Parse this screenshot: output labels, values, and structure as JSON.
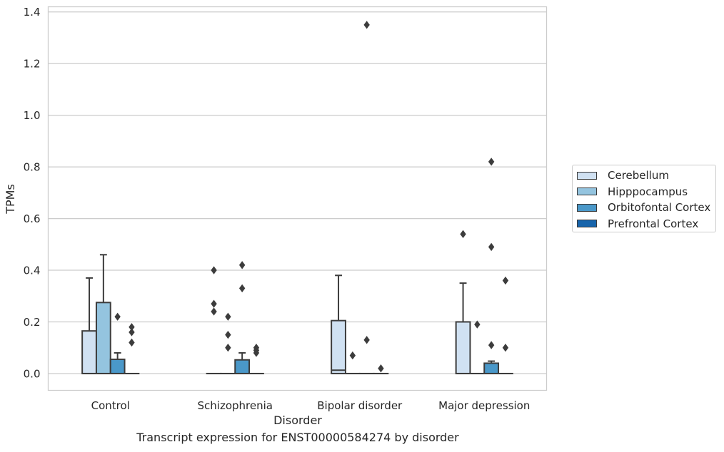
{
  "chart_data": {
    "type": "box",
    "xlabel": "Disorder",
    "ylabel": "TPMs",
    "caption": "Transcript expression for ENST00000584274 by disorder",
    "ylim": [
      -0.065,
      1.42
    ],
    "yticks": [
      "0.0",
      "0.2",
      "0.4",
      "0.6",
      "0.8",
      "1.0",
      "1.2",
      "1.4"
    ],
    "grid": true,
    "legend_position": "right",
    "categories": [
      "Control",
      "Schizophrenia",
      "Bipolar disorder",
      "Major depression"
    ],
    "series": [
      {
        "name": "Cerebellum",
        "color": "#d0e1f2",
        "boxes": [
          {
            "q1": 0.0,
            "median": 0.0,
            "q3": 0.165,
            "whisker_low": 0.0,
            "whisker_high": 0.37,
            "outliers": []
          },
          {
            "q1": 0.0,
            "median": 0.0,
            "q3": 0.0,
            "whisker_low": 0.0,
            "whisker_high": 0.0,
            "outliers": [
              0.4,
              0.27,
              0.24
            ]
          },
          {
            "q1": 0.0,
            "median": 0.013,
            "q3": 0.205,
            "whisker_low": 0.0,
            "whisker_high": 0.38,
            "outliers": []
          },
          {
            "q1": 0.0,
            "median": 0.0,
            "q3": 0.2,
            "whisker_low": 0.0,
            "whisker_high": 0.35,
            "outliers": [
              0.54
            ]
          }
        ]
      },
      {
        "name": "Hipppocampus",
        "color": "#94c4df",
        "boxes": [
          {
            "q1": 0.0,
            "median": 0.0,
            "q3": 0.275,
            "whisker_low": 0.0,
            "whisker_high": 0.46,
            "outliers": []
          },
          {
            "q1": 0.0,
            "median": 0.0,
            "q3": 0.0,
            "whisker_low": 0.0,
            "whisker_high": 0.0,
            "outliers": [
              0.22,
              0.15,
              0.1
            ]
          },
          {
            "q1": 0.0,
            "median": 0.0,
            "q3": 0.0,
            "whisker_low": 0.0,
            "whisker_high": 0.0,
            "outliers": [
              0.07
            ]
          },
          {
            "q1": 0.0,
            "median": 0.0,
            "q3": 0.0,
            "whisker_low": 0.0,
            "whisker_high": 0.0,
            "outliers": [
              0.19
            ]
          }
        ]
      },
      {
        "name": "Orbitofontal Cortex",
        "color": "#4a98c9",
        "boxes": [
          {
            "q1": 0.0,
            "median": 0.0,
            "q3": 0.055,
            "whisker_low": 0.0,
            "whisker_high": 0.08,
            "outliers": [
              0.22
            ]
          },
          {
            "q1": 0.0,
            "median": 0.0,
            "q3": 0.053,
            "whisker_low": 0.0,
            "whisker_high": 0.08,
            "outliers": [
              0.42,
              0.33
            ]
          },
          {
            "q1": 0.0,
            "median": 0.0,
            "q3": 0.0,
            "whisker_low": 0.0,
            "whisker_high": 0.0,
            "outliers": [
              1.35,
              0.13
            ]
          },
          {
            "q1": 0.0,
            "median": 0.0,
            "q3": 0.04,
            "whisker_low": 0.0,
            "whisker_high": 0.048,
            "outliers": [
              0.82,
              0.49,
              0.11
            ]
          }
        ]
      },
      {
        "name": "Prefrontal Cortex",
        "color": "#1764ab",
        "boxes": [
          {
            "q1": 0.0,
            "median": 0.0,
            "q3": 0.0,
            "whisker_low": 0.0,
            "whisker_high": 0.0,
            "outliers": [
              0.18,
              0.16,
              0.12
            ]
          },
          {
            "q1": 0.0,
            "median": 0.0,
            "q3": 0.0,
            "whisker_low": 0.0,
            "whisker_high": 0.0,
            "outliers": [
              0.1,
              0.09,
              0.08
            ]
          },
          {
            "q1": 0.0,
            "median": 0.0,
            "q3": 0.0,
            "whisker_low": 0.0,
            "whisker_high": 0.0,
            "outliers": [
              0.02
            ]
          },
          {
            "q1": 0.0,
            "median": 0.0,
            "q3": 0.0,
            "whisker_low": 0.0,
            "whisker_high": 0.0,
            "outliers": [
              0.36,
              0.1
            ]
          }
        ]
      }
    ]
  }
}
